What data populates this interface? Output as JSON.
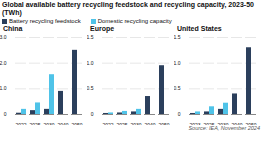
{
  "title": "Global available battery recycling feedstock and recycling capacity, 2023-50 (TWh)",
  "annotations": [
    "Source: IEA, November 2024"
  ],
  "chart_data": [
    {
      "type": "bar",
      "title": "China",
      "categories": [
        "2022",
        "2025",
        "2030",
        "2040",
        "2050"
      ],
      "series": [
        {
          "name": "Battery recycling feedstock",
          "color": "#2b3f5c",
          "values": [
            0.05,
            0.15,
            0.2,
            0.9,
            2.5
          ]
        },
        {
          "name": "Domestic recycling capacity",
          "color": "#4fc3e8",
          "values": [
            0.2,
            0.45,
            1.55,
            0.0,
            0.0
          ]
        }
      ],
      "ylim": [
        0,
        3.0
      ],
      "yticks": [
        0,
        {
          "value": 1.0,
          "label": "1.0"
        },
        {
          "value": 2.0,
          "label": "2.0"
        },
        {
          "value": 3.0,
          "label": "3.0"
        }
      ],
      "grid": true,
      "legend": "top"
    },
    {
      "type": "bar",
      "title": "Europe",
      "categories": [
        "2022",
        "2025",
        "2030",
        "2040",
        "2050"
      ],
      "series": [
        {
          "name": "Battery recycling feedstock",
          "color": "#2b3f5c",
          "values": [
            0.02,
            0.03,
            0.05,
            0.35,
            0.95
          ]
        },
        {
          "name": "Domestic recycling capacity",
          "color": "#4fc3e8",
          "values": [
            0.03,
            0.06,
            0.1,
            0.0,
            0.0
          ]
        }
      ],
      "ylim": [
        0,
        1.5
      ],
      "yticks": [
        0,
        0.5,
        {
          "value": 1.0,
          "label": "1.0"
        },
        1.5
      ],
      "grid": true,
      "legend": "top"
    },
    {
      "type": "bar",
      "title": "United States",
      "categories": [
        "2023",
        "2025",
        "2030",
        "2040",
        "2050"
      ],
      "series": [
        {
          "name": "Battery recycling feedstock",
          "color": "#2b3f5c",
          "values": [
            0.02,
            0.05,
            0.1,
            0.4,
            1.3
          ]
        },
        {
          "name": "Domestic recycling capacity",
          "color": "#4fc3e8",
          "values": [
            0.05,
            0.15,
            0.22,
            0.0,
            0.0
          ]
        }
      ],
      "ylim": [
        0,
        1.5
      ],
      "yticks": [
        0,
        0.5,
        {
          "value": 1.0,
          "label": "1.0"
        },
        1.5
      ],
      "grid": true,
      "legend": "top"
    }
  ]
}
